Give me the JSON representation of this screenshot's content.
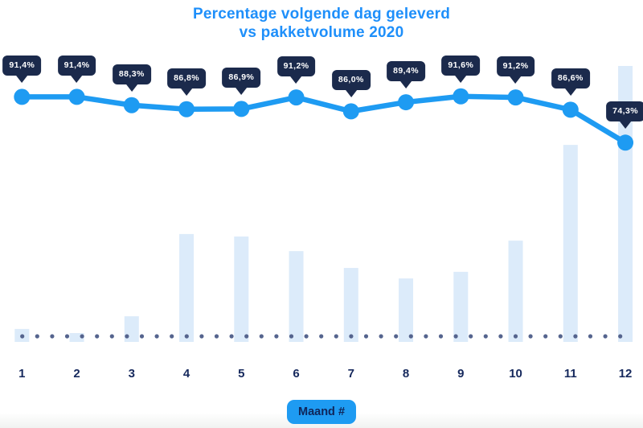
{
  "title": {
    "line1": "Percentage volgende dag geleverd",
    "line2": "vs pakketvolume 2020"
  },
  "x_axis": {
    "badge_label": "Maand #"
  },
  "colors": {
    "title_blue": "#1E8FFA",
    "accent": "#1E9BF2",
    "bar_fill": "#DCEBFA",
    "dot_slate": "#55648E",
    "bubble_navy": "#1B2A4C",
    "bubble_text": "#FFFFFF",
    "label_navy": "#16295D",
    "badge_text_navy": "#10265A"
  },
  "chart_data": {
    "type": "combo",
    "title": "Percentage volgende dag geleverd vs pakketvolume 2020",
    "xlabel": "Maand #",
    "ylabel": "",
    "categories": [
      "1",
      "2",
      "3",
      "4",
      "5",
      "6",
      "7",
      "8",
      "9",
      "10",
      "11",
      "12"
    ],
    "series": [
      {
        "name": "Percentage volgende dag geleverd",
        "type": "line",
        "unit": "%",
        "values": [
          91.4,
          91.4,
          88.3,
          86.8,
          86.9,
          91.2,
          86.0,
          89.4,
          91.6,
          91.2,
          86.6,
          74.3
        ],
        "labels": [
          "91,4%",
          "91,4%",
          "88,3%",
          "86,8%",
          "86,9%",
          "91,2%",
          "86,0%",
          "89,4%",
          "91,6%",
          "91,2%",
          "86,6%",
          "74,3%"
        ]
      },
      {
        "name": "Pakketvolume 2020",
        "type": "bar",
        "unit": "relative volume (max month = 100)",
        "values": [
          4.7,
          3.2,
          9.3,
          39.1,
          38.2,
          32.9,
          26.8,
          23.0,
          25.4,
          36.7,
          71.4,
          100
        ]
      }
    ],
    "percent_axis_range": [
      0,
      100
    ],
    "legend": "none",
    "grid": "dotted baseline row at y of 0%"
  }
}
